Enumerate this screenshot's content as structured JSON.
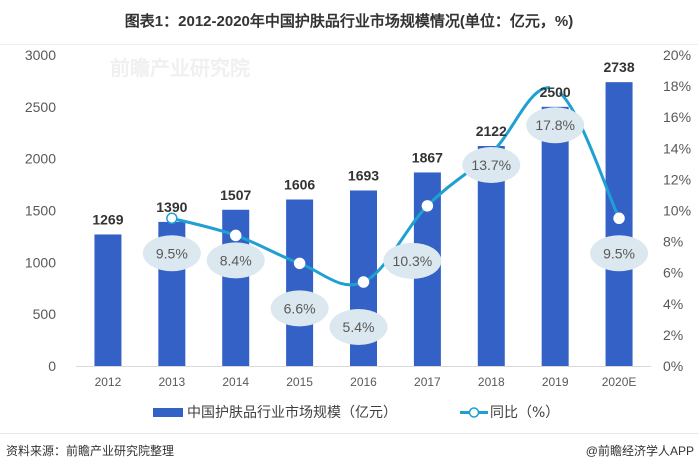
{
  "title": "图表1：2012-2020年中国护肤品行业市场规模情况(单位：亿元，%)",
  "footer": {
    "source": "资料来源：前瞻产业研究院整理",
    "credit": "@前瞻经济学人APP"
  },
  "watermark": "前瞻产业研究院",
  "colors": {
    "bar": "#3461c6",
    "line": "#1fa0d2",
    "label_bubble": "#dbe8f0",
    "axis_text": "#595959",
    "value_text": "#333333"
  },
  "chart_data": {
    "type": "bar",
    "title": "图表1：2012-2020年中国护肤品行业市场规模情况(单位：亿元，%)",
    "categories": [
      "2012",
      "2013",
      "2014",
      "2015",
      "2016",
      "2017",
      "2018",
      "2019",
      "2020E"
    ],
    "series": [
      {
        "name": "中国护肤品行业市场规模（亿元）",
        "type": "bar",
        "axis": "left",
        "values": [
          1269,
          1390,
          1507,
          1606,
          1693,
          1867,
          2122,
          2500,
          2738
        ],
        "labels": [
          "1269",
          "1390",
          "1507",
          "1606",
          "1693",
          "1867",
          "2122",
          "2500",
          "2738"
        ]
      },
      {
        "name": "同比（%）",
        "type": "line",
        "axis": "right",
        "values": [
          null,
          9.5,
          8.4,
          6.6,
          5.4,
          10.3,
          13.7,
          17.8,
          9.5
        ],
        "labels": [
          "",
          "9.5%",
          "8.4%",
          "6.6%",
          "5.4%",
          "10.3%",
          "13.7%",
          "17.8%",
          "9.5%"
        ]
      }
    ],
    "left_axis": {
      "ylim": [
        0,
        3000
      ],
      "ticks": [
        "0",
        "500",
        "1000",
        "1500",
        "2000",
        "2500",
        "3000"
      ]
    },
    "right_axis": {
      "ylim": [
        0,
        20
      ],
      "ticks": [
        "0%",
        "2%",
        "4%",
        "6%",
        "8%",
        "10%",
        "12%",
        "14%",
        "16%",
        "18%",
        "20%"
      ]
    },
    "xlabel": "",
    "ylabel": "",
    "grid": false,
    "legend": {
      "position": "bottom",
      "entries": [
        "中国护肤品行业市场规模（亿元）",
        "同比（%）"
      ]
    }
  }
}
